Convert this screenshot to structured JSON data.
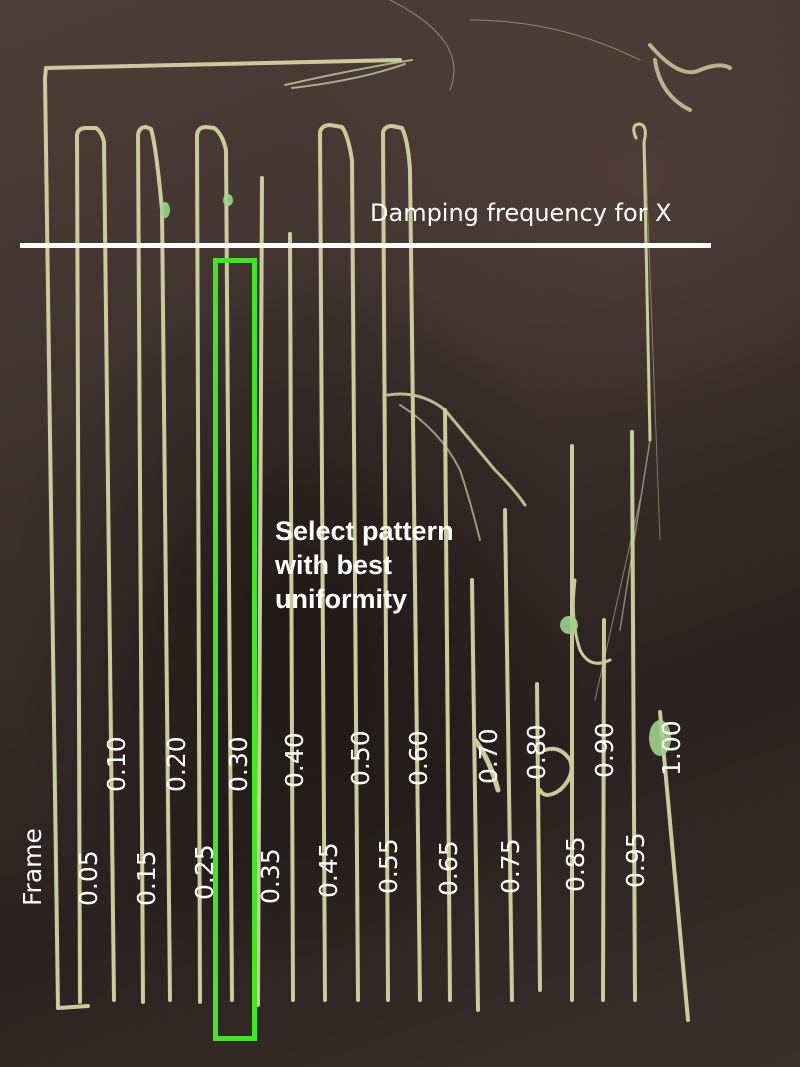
{
  "title": "Damping frequency for X",
  "callout": [
    "Select pattern",
    "with best",
    "uniformity"
  ],
  "frame_label": "Frame",
  "lower_labels": [
    "0.05",
    "0.15",
    "0.25",
    "0.35",
    "0.45",
    "0.55",
    "0.65",
    "0.75",
    "0.85",
    "0.95"
  ],
  "upper_labels": [
    "0.10",
    "0.20",
    "0.30",
    "0.40",
    "0.50",
    "0.60",
    "0.70",
    "0.80",
    "0.90",
    "1.00"
  ],
  "selected_value": "0.30",
  "colors": {
    "bed": "#3a2e2a",
    "filament": "#c9cc9a",
    "filament_blob": "#9fd48a",
    "highlight": "#3ee81e",
    "text": "#ffffff"
  }
}
